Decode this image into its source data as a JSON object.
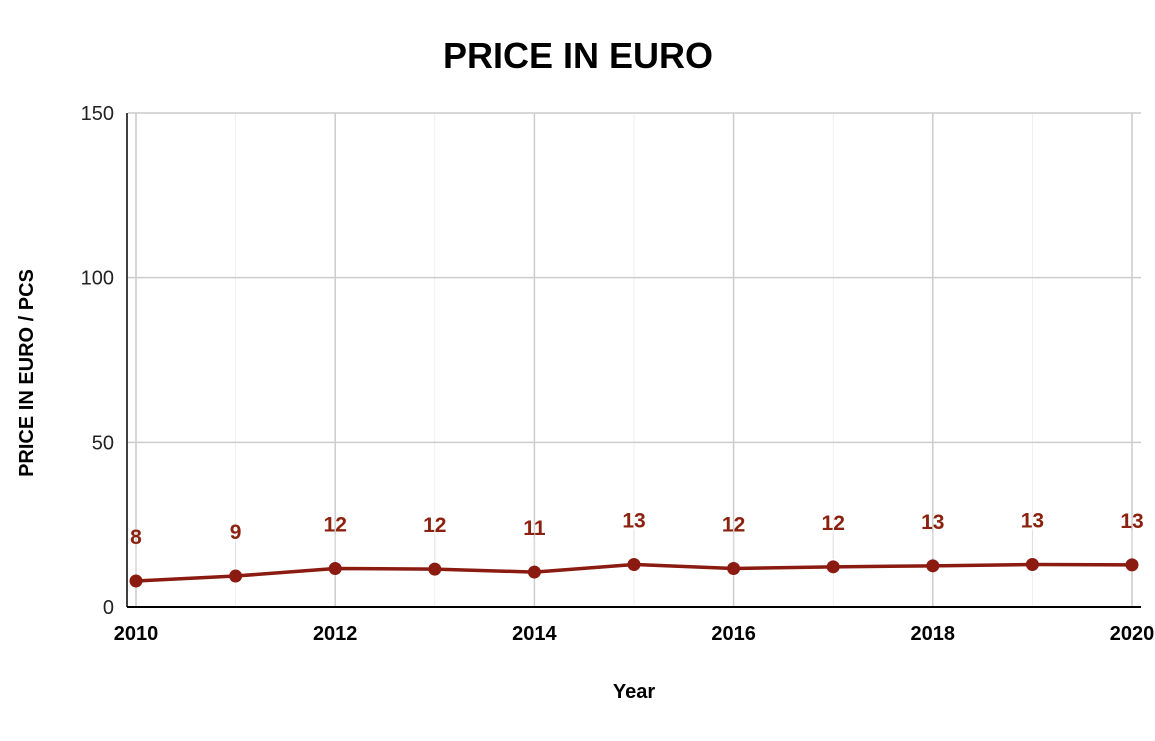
{
  "chart_data": {
    "type": "line",
    "title": "PRICE IN EURO",
    "xlabel": "Year",
    "ylabel": "PRICE IN EURO / PCS",
    "x": [
      2010,
      2011,
      2012,
      2013,
      2014,
      2015,
      2016,
      2017,
      2018,
      2019,
      2020
    ],
    "series": [
      {
        "values": [
          7.9,
          9.4,
          11.7,
          11.5,
          10.6,
          12.9,
          11.7,
          12.2,
          12.5,
          12.9,
          12.8
        ],
        "labels": [
          "8",
          "9",
          "12",
          "12",
          "11",
          "13",
          "12",
          "12",
          "13",
          "13",
          "13"
        ]
      }
    ],
    "xlim": [
      2010,
      2020
    ],
    "ylim": [
      0,
      150
    ],
    "yticks": [
      "0",
      "50",
      "100",
      "150"
    ],
    "xticks": [
      "2010",
      "2012",
      "2014",
      "2016",
      "2018",
      "2020"
    ],
    "grid": true,
    "legend": "none",
    "colors": {
      "line": "#8b1a10",
      "label": "#8b2210",
      "grid": "#cccccc",
      "axis": "#000000"
    }
  }
}
